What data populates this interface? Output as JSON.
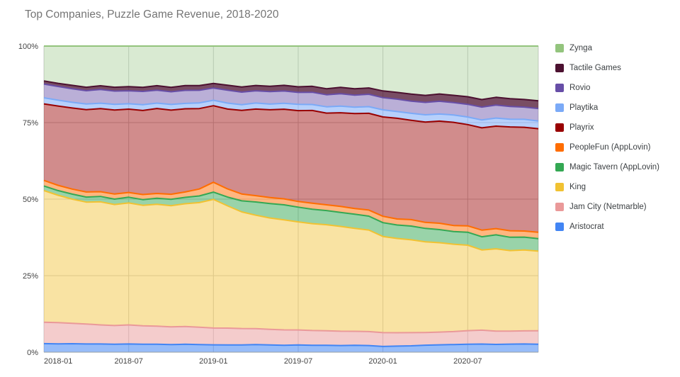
{
  "title": "Top Companies, Puzzle Game Revenue, 2018-2020",
  "chart_data": {
    "type": "area",
    "stacked": "percent",
    "title": "Top Companies, Puzzle Game Revenue, 2018-2020",
    "legend_position": "right",
    "grid": true,
    "ylim": [
      0,
      100
    ],
    "y_ticks": [
      {
        "value": 0,
        "label": "0%"
      },
      {
        "value": 25,
        "label": "25%"
      },
      {
        "value": 50,
        "label": "50%"
      },
      {
        "value": 75,
        "label": "75%"
      },
      {
        "value": 100,
        "label": "100%"
      }
    ],
    "x": [
      "2018-01",
      "2018-02",
      "2018-03",
      "2018-04",
      "2018-05",
      "2018-06",
      "2018-07",
      "2018-08",
      "2018-09",
      "2018-10",
      "2018-11",
      "2018-12",
      "2019-01",
      "2019-02",
      "2019-03",
      "2019-04",
      "2019-05",
      "2019-06",
      "2019-07",
      "2019-08",
      "2019-09",
      "2019-10",
      "2019-11",
      "2019-12",
      "2020-01",
      "2020-02",
      "2020-03",
      "2020-04",
      "2020-05",
      "2020-06",
      "2020-07",
      "2020-08",
      "2020-09",
      "2020-10",
      "2020-11",
      "2020-12"
    ],
    "x_tick_labels": [
      "2018-01",
      "2018-07",
      "2019-01",
      "2019-07",
      "2020-01",
      "2020-07"
    ],
    "x_tick_indices": [
      0,
      6,
      12,
      18,
      24,
      30
    ],
    "series": [
      {
        "name": "Aristocrat",
        "color": "#4285f4",
        "fill": "rgba(66,133,244,0.55)",
        "values": [
          2.8,
          2.7,
          2.7,
          2.6,
          2.6,
          2.5,
          2.6,
          2.5,
          2.5,
          2.4,
          2.5,
          2.4,
          2.4,
          2.3,
          2.3,
          2.4,
          2.3,
          2.2,
          2.3,
          2.2,
          2.2,
          2.1,
          2.2,
          2.1,
          1.8,
          1.9,
          2.0,
          2.2,
          2.3,
          2.4,
          2.5,
          2.6,
          2.5,
          2.6,
          2.7,
          2.6
        ]
      },
      {
        "name": "Jam City (Netmarble)",
        "color": "#ea9999",
        "fill": "rgba(234,153,153,0.5)",
        "values": [
          7.0,
          6.8,
          6.5,
          6.3,
          6.0,
          5.9,
          6.0,
          5.8,
          5.7,
          5.6,
          5.6,
          5.5,
          5.5,
          5.4,
          5.2,
          5.1,
          5.0,
          4.9,
          4.8,
          4.7,
          4.6,
          4.5,
          4.4,
          4.4,
          4.3,
          4.2,
          4.1,
          4.0,
          4.0,
          4.1,
          4.3,
          4.4,
          4.3,
          4.2,
          4.3,
          4.4
        ]
      },
      {
        "name": "King",
        "color": "#f1c232",
        "fill": "rgba(241,194,50,0.45)",
        "values": [
          43.0,
          41.0,
          39.5,
          38.5,
          38.8,
          38.2,
          38.5,
          38.0,
          38.5,
          38.2,
          38.8,
          39.5,
          42.0,
          39.0,
          37.0,
          36.0,
          35.5,
          35.0,
          34.5,
          34.0,
          33.5,
          33.0,
          32.5,
          32.0,
          30.0,
          29.5,
          29.0,
          28.5,
          28.0,
          27.5,
          27.0,
          25.5,
          26.5,
          26.0,
          26.5,
          26.0
        ]
      },
      {
        "name": "Magic Tavern (AppLovin)",
        "color": "#34a853",
        "fill": "rgba(52,168,83,0.5)",
        "values": [
          1.5,
          1.5,
          1.6,
          1.6,
          1.7,
          1.7,
          1.8,
          1.8,
          1.9,
          2.0,
          2.0,
          2.1,
          2.4,
          2.8,
          3.5,
          4.2,
          4.6,
          4.8,
          4.7,
          4.6,
          4.5,
          4.4,
          4.5,
          4.4,
          4.3,
          4.2,
          4.3,
          4.2,
          4.1,
          4.0,
          4.1,
          4.2,
          4.5,
          4.3,
          4.2,
          4.1
        ]
      },
      {
        "name": "PeopleFun (AppLovin)",
        "color": "#ff6d01",
        "fill": "rgba(255,109,1,0.5)",
        "values": [
          1.8,
          1.7,
          1.6,
          1.6,
          1.5,
          1.6,
          1.5,
          1.6,
          1.5,
          1.6,
          1.7,
          2.2,
          3.2,
          2.6,
          2.2,
          2.0,
          1.9,
          1.9,
          1.8,
          1.9,
          1.8,
          1.9,
          1.8,
          1.9,
          2.0,
          1.9,
          2.0,
          1.9,
          2.0,
          1.9,
          2.0,
          2.1,
          2.0,
          2.1,
          2.0,
          2.1
        ]
      },
      {
        "name": "Playrix",
        "color": "#990000",
        "fill": "rgba(153,0,0,0.45)",
        "values": [
          25.0,
          25.5,
          25.8,
          26.0,
          26.2,
          26.5,
          26.3,
          26.5,
          26.8,
          26.5,
          26.3,
          25.5,
          25.0,
          25.5,
          26.5,
          27.5,
          28.0,
          28.5,
          29.0,
          29.5,
          29.0,
          29.5,
          30.0,
          30.5,
          31.0,
          31.5,
          31.0,
          31.5,
          32.0,
          32.5,
          32.0,
          32.5,
          33.0,
          33.5,
          34.0,
          33.8
        ]
      },
      {
        "name": "Playtika",
        "color": "#7baaf7",
        "fill": "rgba(123,170,247,0.55)",
        "values": [
          2.0,
          1.9,
          1.8,
          1.8,
          1.7,
          1.8,
          1.7,
          1.8,
          1.7,
          1.8,
          1.7,
          1.8,
          1.8,
          1.9,
          1.8,
          1.9,
          1.8,
          1.9,
          2.0,
          1.9,
          2.0,
          2.1,
          2.0,
          2.1,
          2.2,
          2.1,
          2.2,
          2.3,
          2.2,
          2.3,
          2.4,
          2.5,
          2.6,
          2.5,
          2.6,
          2.5
        ]
      },
      {
        "name": "Rovio",
        "color": "#674ea7",
        "fill": "rgba(103,78,167,0.45)",
        "values": [
          4.5,
          4.4,
          4.3,
          4.2,
          4.3,
          4.2,
          4.1,
          4.2,
          4.1,
          4.0,
          4.1,
          4.0,
          4.0,
          4.1,
          4.0,
          3.9,
          4.0,
          3.9,
          3.8,
          3.9,
          3.8,
          3.9,
          3.8,
          3.9,
          3.8,
          3.9,
          3.8,
          3.9,
          4.0,
          3.9,
          4.0,
          4.1,
          4.2,
          4.1,
          4.0,
          4.1
        ]
      },
      {
        "name": "Tactile Games",
        "color": "#4c1130",
        "fill": "rgba(76,17,48,0.75)",
        "values": [
          1.0,
          1.0,
          1.1,
          1.1,
          1.2,
          1.2,
          1.3,
          1.3,
          1.4,
          1.4,
          1.5,
          1.5,
          1.5,
          1.6,
          1.6,
          1.7,
          1.7,
          1.8,
          1.8,
          1.9,
          1.9,
          2.0,
          2.0,
          2.0,
          2.1,
          2.1,
          2.2,
          2.2,
          2.3,
          2.3,
          2.4,
          2.4,
          2.5,
          2.5,
          2.5,
          2.5
        ]
      },
      {
        "name": "Zynga",
        "color": "#93c47d",
        "fill": "rgba(147,196,125,0.35)",
        "values": [
          11.4,
          12.0,
          12.5,
          13.0,
          12.5,
          13.0,
          12.8,
          13.0,
          12.5,
          13.0,
          12.5,
          12.5,
          12.2,
          12.5,
          13.0,
          12.5,
          12.8,
          12.5,
          13.0,
          12.8,
          13.5,
          13.0,
          13.5,
          13.2,
          14.0,
          14.5,
          15.0,
          15.5,
          15.0,
          15.5,
          16.0,
          17.0,
          16.5,
          17.0,
          17.5,
          17.9
        ]
      }
    ],
    "legend": [
      "Zynga",
      "Tactile Games",
      "Rovio",
      "Playtika",
      "Playrix",
      "PeopleFun (AppLovin)",
      "Magic Tavern (AppLovin)",
      "King",
      "Jam City (Netmarble)",
      "Aristocrat"
    ]
  }
}
